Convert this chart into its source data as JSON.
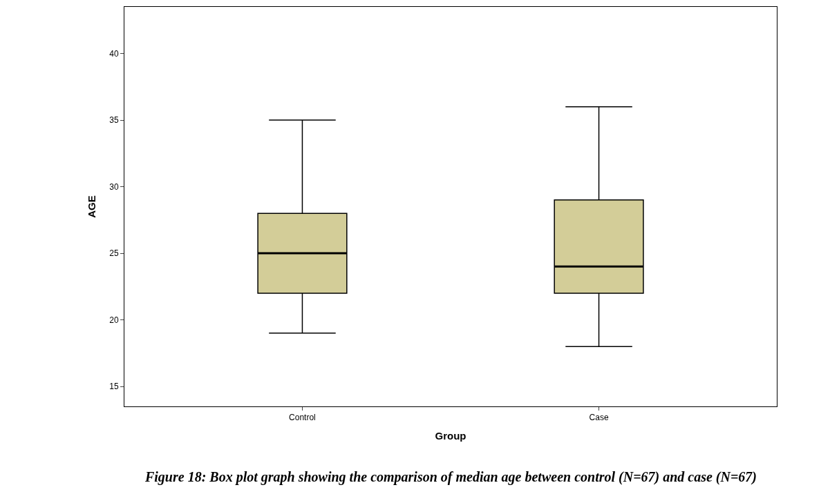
{
  "chart_data": {
    "type": "box",
    "xlabel": "Group",
    "ylabel": "AGE",
    "categories": [
      "Control",
      "Case"
    ],
    "boxes": [
      {
        "low": 19,
        "q1": 22,
        "median": 25,
        "q3": 28,
        "high": 35
      },
      {
        "low": 18,
        "q1": 22,
        "median": 24,
        "q3": 29,
        "high": 36
      }
    ],
    "color": "#d3cd98",
    "ylim": [
      13.5,
      43.5
    ],
    "yticks": [
      15,
      20,
      25,
      30,
      35,
      40
    ],
    "annotations": [
      "Figure 18: Box plot graph showing the comparison of median age between control (N=67) and case (N=67)"
    ]
  }
}
